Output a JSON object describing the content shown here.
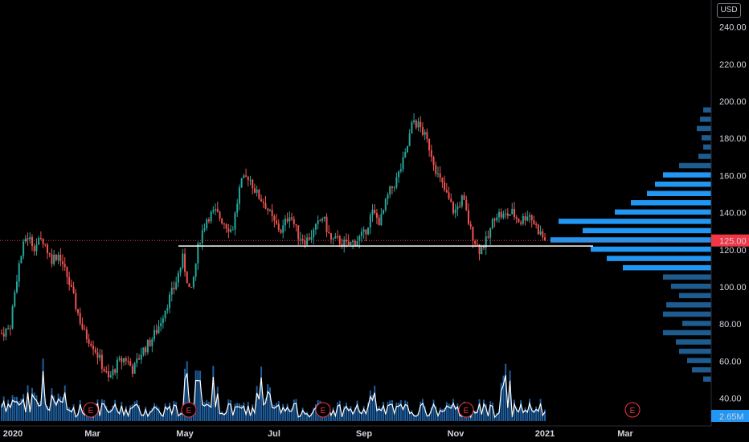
{
  "header": {
    "currency_label": "USD"
  },
  "price_axis": {
    "ticks": [
      "240.00",
      "220.00",
      "200.00",
      "180.00",
      "160.00",
      "140.00",
      "120.00",
      "100.00",
      "80.00",
      "60.00",
      "40.00"
    ],
    "current_price_label": "125.00",
    "volume_label": "2.65M"
  },
  "time_axis": {
    "labels": [
      "2020",
      "Mar",
      "May",
      "Jul",
      "Sep",
      "Nov",
      "2021",
      "Mar"
    ]
  },
  "earnings_markers": [
    "E",
    "E",
    "E",
    "E",
    "E"
  ],
  "colors": {
    "background": "#000000",
    "up": "#26a69a",
    "down": "#ef5350",
    "volume_bar": "#1e5fa0",
    "volume_line": "#ffffff",
    "profile_main": "#2196f3",
    "profile_dim": "#1e5b8f",
    "price_line": "#f23645",
    "support_line": "#ffffff",
    "axis_text": "#d1d4dc"
  },
  "chart_data": {
    "type": "candlestick",
    "ylim": [
      30,
      250
    ],
    "x": [
      "2020-01",
      "2020-02",
      "2020-03",
      "2020-04",
      "2020-05",
      "2020-06",
      "2020-07",
      "2020-08",
      "2020-09",
      "2020-10",
      "2020-11",
      "2020-12",
      "2021-01"
    ],
    "close_path": [
      75,
      78,
      110,
      128,
      122,
      126,
      115,
      118,
      105,
      90,
      75,
      70,
      60,
      50,
      58,
      62,
      55,
      65,
      70,
      78,
      90,
      100,
      115,
      95,
      125,
      138,
      140,
      135,
      130,
      155,
      160,
      150,
      145,
      135,
      130,
      140,
      128,
      125,
      130,
      138,
      125,
      125,
      122,
      125,
      128,
      140,
      135,
      150,
      158,
      170,
      190,
      185,
      175,
      160,
      150,
      140,
      148,
      130,
      120,
      125,
      140,
      138,
      140,
      135,
      140,
      132,
      125
    ],
    "current_price": 125,
    "support_level": 122,
    "volume_profile": [
      {
        "price": 195,
        "vol": 0.05
      },
      {
        "price": 190,
        "vol": 0.07
      },
      {
        "price": 185,
        "vol": 0.09
      },
      {
        "price": 180,
        "vol": 0.06
      },
      {
        "price": 175,
        "vol": 0.05
      },
      {
        "price": 170,
        "vol": 0.08
      },
      {
        "price": 165,
        "vol": 0.2
      },
      {
        "price": 160,
        "vol": 0.3
      },
      {
        "price": 155,
        "vol": 0.35
      },
      {
        "price": 150,
        "vol": 0.4
      },
      {
        "price": 145,
        "vol": 0.5
      },
      {
        "price": 140,
        "vol": 0.6
      },
      {
        "price": 135,
        "vol": 0.95
      },
      {
        "price": 130,
        "vol": 0.8
      },
      {
        "price": 125,
        "vol": 1.0
      },
      {
        "price": 120,
        "vol": 0.75
      },
      {
        "price": 115,
        "vol": 0.65
      },
      {
        "price": 110,
        "vol": 0.55
      },
      {
        "price": 105,
        "vol": 0.3
      },
      {
        "price": 100,
        "vol": 0.25
      },
      {
        "price": 95,
        "vol": 0.2
      },
      {
        "price": 90,
        "vol": 0.28
      },
      {
        "price": 85,
        "vol": 0.3
      },
      {
        "price": 80,
        "vol": 0.18
      },
      {
        "price": 75,
        "vol": 0.3
      },
      {
        "price": 70,
        "vol": 0.22
      },
      {
        "price": 65,
        "vol": 0.2
      },
      {
        "price": 60,
        "vol": 0.15
      },
      {
        "price": 55,
        "vol": 0.12
      },
      {
        "price": 50,
        "vol": 0.05
      }
    ]
  }
}
